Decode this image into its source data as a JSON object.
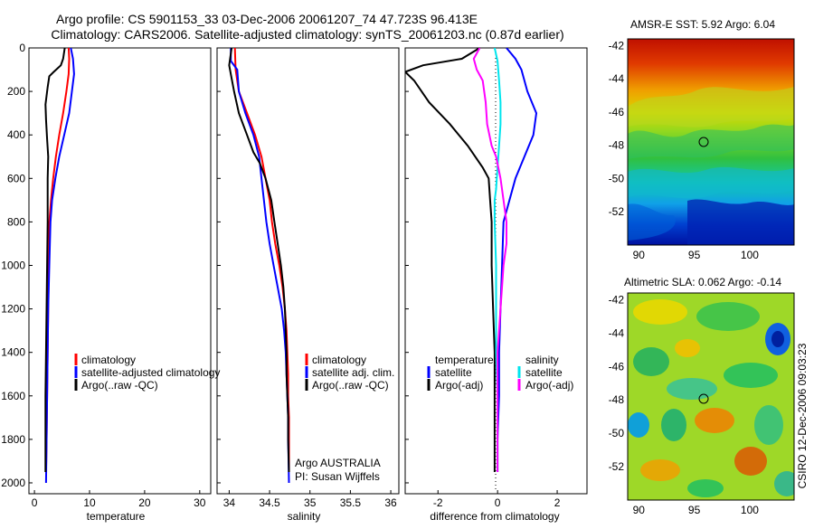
{
  "header": {
    "title_line1": "Argo profile: CS 5901153_33 03-Dec-2006 20061207_74 47.723S 96.413E",
    "title_line2": "Climatology: CARS2006. Satellite-adjusted climatology: synTS_20061203.nc (0.87d earlier)"
  },
  "side_label": "CSIRO 12-Dec-2006 09:03:23",
  "colors": {
    "climatology": "#ff0000",
    "satellite": "#0000ff",
    "argo": "#000000",
    "salinity_satellite": "#00e5ee",
    "salinity_argo": "#ff00ff"
  },
  "chart_data": [
    {
      "type": "line",
      "name": "temperature-panel",
      "xlabel": "temperature",
      "ylabel": "",
      "xlim": [
        -1,
        32
      ],
      "ylim": [
        2050,
        0
      ],
      "xticks": [
        "0",
        "10",
        "20",
        "30"
      ],
      "xtick_values": [
        0,
        10,
        20,
        30
      ],
      "yticks": [
        "0",
        "200",
        "400",
        "600",
        "800",
        "1000",
        "1200",
        "1400",
        "1600",
        "1800",
        "2000"
      ],
      "ytick_values": [
        0,
        200,
        400,
        600,
        800,
        1000,
        1200,
        1400,
        1600,
        1800,
        2000
      ],
      "legend": [
        "climatology",
        "satellite-adjusted climatology",
        "Argo(..raw -QC)"
      ],
      "legend_placement": "lower-right",
      "series": [
        {
          "name": "climatology",
          "color": "#ff0000",
          "points": [
            [
              6.2,
              0
            ],
            [
              6.3,
              50
            ],
            [
              6.2,
              120
            ],
            [
              5.8,
              200
            ],
            [
              5.2,
              300
            ],
            [
              4.5,
              400
            ],
            [
              3.9,
              500
            ],
            [
              3.4,
              600
            ],
            [
              3.0,
              700
            ],
            [
              2.7,
              800
            ],
            [
              2.6,
              1000
            ],
            [
              2.5,
              1200
            ],
            [
              2.4,
              1400
            ],
            [
              2.3,
              1600
            ],
            [
              2.2,
              1800
            ],
            [
              2.1,
              1950
            ]
          ]
        },
        {
          "name": "satellite-adjusted climatology",
          "color": "#0000ff",
          "points": [
            [
              6.6,
              0
            ],
            [
              7.0,
              50
            ],
            [
              7.2,
              120
            ],
            [
              6.8,
              200
            ],
            [
              6.3,
              300
            ],
            [
              5.4,
              400
            ],
            [
              4.5,
              500
            ],
            [
              3.8,
              600
            ],
            [
              3.2,
              700
            ],
            [
              2.9,
              800
            ],
            [
              2.7,
              1000
            ],
            [
              2.5,
              1200
            ],
            [
              2.4,
              1400
            ],
            [
              2.3,
              1600
            ],
            [
              2.2,
              1800
            ],
            [
              2.1,
              2000
            ]
          ]
        },
        {
          "name": "Argo(..raw -QC)",
          "color": "#000000",
          "points": [
            [
              5.5,
              0
            ],
            [
              5.2,
              50
            ],
            [
              4.8,
              80
            ],
            [
              3.5,
              110
            ],
            [
              2.7,
              130
            ],
            [
              2.4,
              180
            ],
            [
              2.0,
              260
            ],
            [
              2.1,
              330
            ],
            [
              2.3,
              420
            ],
            [
              2.5,
              500
            ],
            [
              2.4,
              600
            ],
            [
              2.4,
              700
            ],
            [
              2.4,
              800
            ],
            [
              2.3,
              1000
            ],
            [
              2.2,
              1200
            ],
            [
              2.1,
              1400
            ],
            [
              2.0,
              1600
            ],
            [
              2.0,
              1800
            ],
            [
              2.0,
              1950
            ]
          ]
        }
      ]
    },
    {
      "type": "line",
      "name": "salinity-panel",
      "xlabel": "salinity",
      "ylabel": "",
      "xlim": [
        33.85,
        36.1
      ],
      "ylim": [
        2050,
        0
      ],
      "xticks": [
        "34",
        "34.5",
        "35",
        "35.5",
        "36"
      ],
      "xtick_values": [
        34,
        34.5,
        35,
        35.5,
        36
      ],
      "legend": [
        "climatology",
        "satellite adj. clim.",
        "Argo(..raw -QC)"
      ],
      "legend_placement": "lower-right",
      "annotations": [
        "Argo AUSTRALIA",
        "PI: Susan Wijffels"
      ],
      "series": [
        {
          "name": "climatology",
          "color": "#ff0000",
          "points": [
            [
              34.07,
              0
            ],
            [
              34.08,
              100
            ],
            [
              34.12,
              200
            ],
            [
              34.22,
              300
            ],
            [
              34.32,
              400
            ],
            [
              34.4,
              500
            ],
            [
              34.45,
              600
            ],
            [
              34.5,
              700
            ],
            [
              34.53,
              800
            ],
            [
              34.57,
              900
            ],
            [
              34.62,
              1000
            ],
            [
              34.66,
              1100
            ],
            [
              34.69,
              1200
            ],
            [
              34.71,
              1300
            ],
            [
              34.72,
              1400
            ],
            [
              34.73,
              1500
            ],
            [
              34.73,
              1600
            ],
            [
              34.74,
              1700
            ],
            [
              34.74,
              1800
            ],
            [
              34.74,
              1950
            ]
          ]
        },
        {
          "name": "satellite adj. clim.",
          "color": "#0000ff",
          "points": [
            [
              34.02,
              0
            ],
            [
              34.02,
              60
            ],
            [
              34.1,
              100
            ],
            [
              34.12,
              200
            ],
            [
              34.2,
              300
            ],
            [
              34.3,
              400
            ],
            [
              34.37,
              500
            ],
            [
              34.4,
              600
            ],
            [
              34.43,
              700
            ],
            [
              34.46,
              800
            ],
            [
              34.5,
              900
            ],
            [
              34.55,
              1000
            ],
            [
              34.6,
              1100
            ],
            [
              34.65,
              1200
            ],
            [
              34.68,
              1300
            ],
            [
              34.7,
              1400
            ],
            [
              34.71,
              1500
            ],
            [
              34.72,
              1600
            ],
            [
              34.73,
              1700
            ],
            [
              34.73,
              1800
            ],
            [
              34.74,
              2000
            ]
          ]
        },
        {
          "name": "Argo(..raw -QC)",
          "color": "#000000",
          "points": [
            [
              34.03,
              0
            ],
            [
              34.0,
              80
            ],
            [
              34.02,
              120
            ],
            [
              34.06,
              200
            ],
            [
              34.12,
              300
            ],
            [
              34.22,
              400
            ],
            [
              34.3,
              480
            ],
            [
              34.38,
              530
            ],
            [
              34.45,
              600
            ],
            [
              34.52,
              700
            ],
            [
              34.56,
              800
            ],
            [
              34.6,
              900
            ],
            [
              34.64,
              1000
            ],
            [
              34.67,
              1100
            ],
            [
              34.69,
              1200
            ],
            [
              34.7,
              1300
            ],
            [
              34.71,
              1400
            ],
            [
              34.71,
              1500
            ],
            [
              34.72,
              1600
            ],
            [
              34.73,
              1700
            ],
            [
              34.73,
              1800
            ],
            [
              34.74,
              1950
            ]
          ]
        }
      ]
    },
    {
      "type": "line",
      "name": "difference-panel",
      "xlabel": "difference from climatology",
      "ylabel": "",
      "xlim": [
        -3.1,
        3.0
      ],
      "ylim": [
        2050,
        0
      ],
      "xticks": [
        "-2",
        "0",
        "2"
      ],
      "xtick_values": [
        -2,
        0,
        2
      ],
      "legend_groups": [
        {
          "heading": "temperature",
          "entries": [
            "satellite",
            "Argo(-adj)"
          ]
        },
        {
          "heading": "salinity",
          "entries": [
            "satellite",
            "Argo(-adj)"
          ]
        }
      ],
      "legend_placement": "lower-center",
      "series": [
        {
          "name": "temperature satellite",
          "color": "#0000ff",
          "points": [
            [
              0.3,
              0
            ],
            [
              0.6,
              50
            ],
            [
              0.8,
              100
            ],
            [
              1.0,
              200
            ],
            [
              1.3,
              300
            ],
            [
              1.2,
              400
            ],
            [
              0.9,
              500
            ],
            [
              0.6,
              600
            ],
            [
              0.4,
              700
            ],
            [
              0.2,
              800
            ],
            [
              0.15,
              1000
            ],
            [
              0.1,
              1200
            ],
            [
              0.05,
              1400
            ],
            [
              0.05,
              1600
            ],
            [
              0.0,
              1800
            ],
            [
              0.0,
              1950
            ]
          ]
        },
        {
          "name": "temperature Argo(-adj)",
          "color": "#000000",
          "points": [
            [
              -0.6,
              0
            ],
            [
              -1.2,
              50
            ],
            [
              -2.5,
              80
            ],
            [
              -3.1,
              110
            ],
            [
              -2.8,
              150
            ],
            [
              -2.3,
              250
            ],
            [
              -1.6,
              350
            ],
            [
              -1.0,
              450
            ],
            [
              -0.5,
              550
            ],
            [
              -0.3,
              600
            ],
            [
              -0.25,
              700
            ],
            [
              -0.2,
              800
            ],
            [
              -0.2,
              1000
            ],
            [
              -0.15,
              1200
            ],
            [
              -0.1,
              1400
            ],
            [
              -0.1,
              1600
            ],
            [
              -0.1,
              1800
            ],
            [
              -0.1,
              1950
            ]
          ]
        },
        {
          "name": "salinity satellite",
          "color": "#00e5ee",
          "points": [
            [
              -0.1,
              0
            ],
            [
              0.0,
              60
            ],
            [
              0.05,
              150
            ],
            [
              0.1,
              250
            ],
            [
              0.1,
              350
            ],
            [
              0.05,
              450
            ],
            [
              0.0,
              550
            ],
            [
              -0.05,
              650
            ],
            [
              -0.1,
              700
            ],
            [
              -0.1,
              800
            ],
            [
              -0.05,
              1000
            ],
            [
              -0.05,
              1200
            ],
            [
              -0.05,
              1400
            ],
            [
              0.0,
              1600
            ],
            [
              0.0,
              1800
            ],
            [
              0.0,
              1950
            ]
          ]
        },
        {
          "name": "salinity Argo(-adj)",
          "color": "#ff00ff",
          "points": [
            [
              -0.6,
              0
            ],
            [
              -0.8,
              50
            ],
            [
              -0.7,
              100
            ],
            [
              -0.5,
              150
            ],
            [
              -0.4,
              250
            ],
            [
              -0.35,
              350
            ],
            [
              -0.2,
              450
            ],
            [
              -0.05,
              500
            ],
            [
              0.1,
              600
            ],
            [
              0.2,
              700
            ],
            [
              0.3,
              800
            ],
            [
              0.3,
              900
            ],
            [
              0.2,
              1000
            ],
            [
              0.1,
              1200
            ],
            [
              0.0,
              1400
            ],
            [
              0.0,
              1600
            ],
            [
              0.0,
              1800
            ],
            [
              0.0,
              1950
            ]
          ]
        }
      ]
    },
    {
      "type": "heatmap",
      "name": "sst-map",
      "title": "AMSR-E SST: 5.92 Argo: 6.04",
      "xlim": [
        89,
        104
      ],
      "ylim": [
        -54,
        -41.6
      ],
      "xticks": [
        "90",
        "95",
        "100"
      ],
      "xtick_values": [
        90,
        95,
        100
      ],
      "yticks": [
        "-42",
        "-44",
        "-46",
        "-48",
        "-50",
        "-52"
      ],
      "ytick_values": [
        -42,
        -44,
        -46,
        -48,
        -50,
        -52
      ],
      "marker": {
        "lon": 96.4,
        "lat": -47.7
      }
    },
    {
      "type": "heatmap",
      "name": "sla-map",
      "title": "Altimetric SLA: 0.062 Argo: -0.14",
      "xlim": [
        89,
        104
      ],
      "ylim": [
        -54,
        -41.6
      ],
      "xticks": [
        "90",
        "95",
        "100"
      ],
      "xtick_values": [
        90,
        95,
        100
      ],
      "yticks": [
        "-42",
        "-44",
        "-46",
        "-48",
        "-50",
        "-52"
      ],
      "ytick_values": [
        -42,
        -44,
        -46,
        -48,
        -50,
        -52
      ],
      "marker": {
        "lon": 96.4,
        "lat": -47.7
      }
    }
  ]
}
